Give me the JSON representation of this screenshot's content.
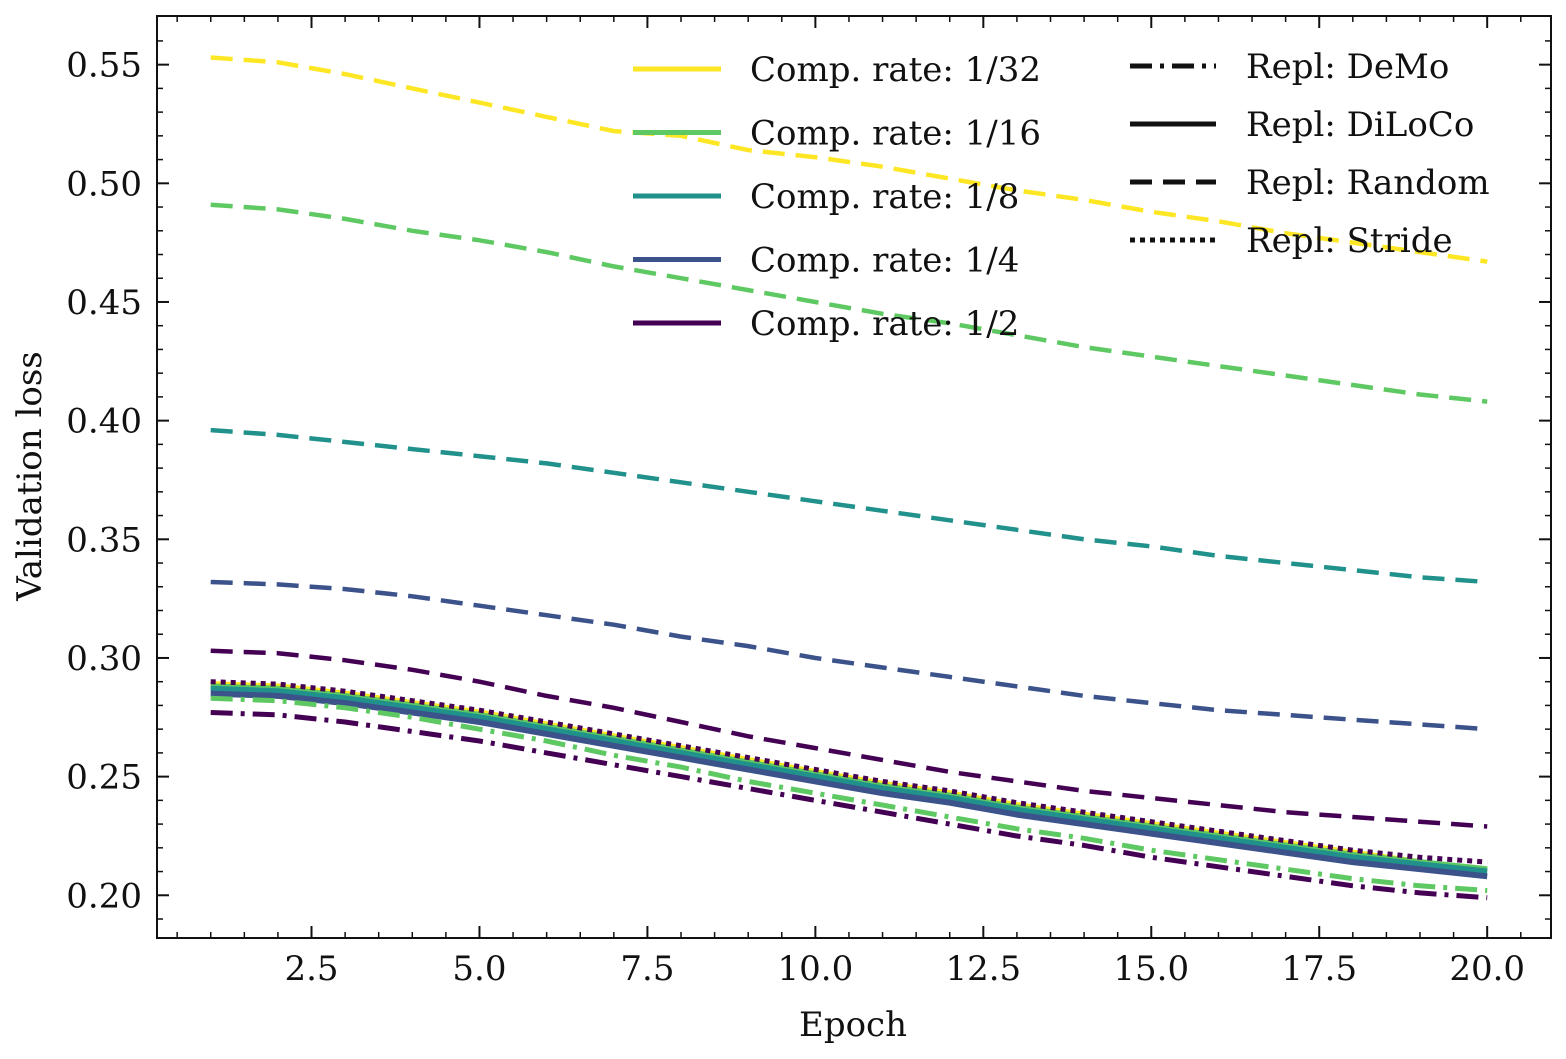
{
  "chart_data": {
    "type": "line",
    "title": "",
    "xlabel": "Epoch",
    "ylabel": "Validation loss",
    "xlim": [
      0.2,
      20.95
    ],
    "ylim": [
      0.182,
      0.5705
    ],
    "xticks": [
      2.5,
      5.0,
      7.5,
      10.0,
      12.5,
      15.0,
      17.5,
      20.0
    ],
    "xtick_labels": [
      "2.5",
      "5.0",
      "7.5",
      "10.0",
      "12.5",
      "15.0",
      "17.5",
      "20.0"
    ],
    "yticks": [
      0.2,
      0.25,
      0.3,
      0.35,
      0.4,
      0.45,
      0.5,
      0.55
    ],
    "ytick_labels": [
      "0.20",
      "0.25",
      "0.30",
      "0.35",
      "0.40",
      "0.45",
      "0.50",
      "0.55"
    ],
    "x": [
      1,
      2,
      3,
      4,
      5,
      6,
      7,
      8,
      9,
      10,
      11,
      12,
      13,
      14,
      15,
      16,
      17,
      18,
      19,
      20
    ],
    "rate_colors": {
      "1/32": "#fde725",
      "1/16": "#5ec962",
      "1/8": "#21918c",
      "1/4": "#3b528b",
      "1/2": "#440154"
    },
    "legend": {
      "rates": [
        {
          "label": "Comp. rate: 1/32",
          "color": "#fde725"
        },
        {
          "label": "Comp. rate: 1/16",
          "color": "#5ec962"
        },
        {
          "label": "Comp. rate: 1/8",
          "color": "#21918c"
        },
        {
          "label": "Comp. rate: 1/4",
          "color": "#3b528b"
        },
        {
          "label": "Comp. rate: 1/2",
          "color": "#440154"
        }
      ],
      "methods": [
        {
          "label": "Repl: DeMo",
          "style": "dashdot"
        },
        {
          "label": "Repl: DiLoCo",
          "style": "solid"
        },
        {
          "label": "Repl: Random",
          "style": "dashed"
        },
        {
          "label": "Repl: Stride",
          "style": "dotted"
        }
      ]
    },
    "series": [
      {
        "name": "Random 1/32",
        "method": "Random",
        "rate": "1/32",
        "values": [
          0.553,
          0.551,
          0.546,
          0.54,
          0.534,
          0.528,
          0.522,
          0.52,
          0.514,
          0.511,
          0.507,
          0.502,
          0.497,
          0.493,
          0.488,
          0.484,
          0.479,
          0.475,
          0.471,
          0.467
        ]
      },
      {
        "name": "Random 1/16",
        "method": "Random",
        "rate": "1/16",
        "values": [
          0.491,
          0.489,
          0.485,
          0.48,
          0.476,
          0.471,
          0.465,
          0.46,
          0.455,
          0.45,
          0.445,
          0.441,
          0.436,
          0.431,
          0.427,
          0.423,
          0.419,
          0.415,
          0.411,
          0.408
        ]
      },
      {
        "name": "Random 1/8",
        "method": "Random",
        "rate": "1/8",
        "values": [
          0.396,
          0.394,
          0.391,
          0.388,
          0.385,
          0.382,
          0.378,
          0.374,
          0.37,
          0.366,
          0.362,
          0.358,
          0.354,
          0.35,
          0.347,
          0.343,
          0.34,
          0.337,
          0.334,
          0.332
        ]
      },
      {
        "name": "Random 1/4",
        "method": "Random",
        "rate": "1/4",
        "values": [
          0.332,
          0.331,
          0.329,
          0.326,
          0.322,
          0.318,
          0.314,
          0.309,
          0.305,
          0.3,
          0.296,
          0.292,
          0.288,
          0.284,
          0.281,
          0.278,
          0.276,
          0.274,
          0.272,
          0.27
        ]
      },
      {
        "name": "Random 1/2",
        "method": "Random",
        "rate": "1/2",
        "values": [
          0.303,
          0.302,
          0.299,
          0.295,
          0.29,
          0.284,
          0.279,
          0.273,
          0.267,
          0.262,
          0.257,
          0.252,
          0.248,
          0.244,
          0.241,
          0.238,
          0.235,
          0.233,
          0.231,
          0.229
        ]
      },
      {
        "name": "DiLoCo 1/32",
        "method": "DiLoCo",
        "rate": "1/32",
        "values": [
          0.289,
          0.288,
          0.285,
          0.281,
          0.277,
          0.272,
          0.267,
          0.262,
          0.257,
          0.252,
          0.247,
          0.243,
          0.238,
          0.234,
          0.23,
          0.226,
          0.222,
          0.218,
          0.214,
          0.21
        ]
      },
      {
        "name": "DiLoCo 1/16",
        "method": "DiLoCo",
        "rate": "1/16",
        "values": [
          0.288,
          0.287,
          0.284,
          0.28,
          0.276,
          0.271,
          0.266,
          0.261,
          0.256,
          0.251,
          0.246,
          0.242,
          0.237,
          0.233,
          0.229,
          0.225,
          0.221,
          0.217,
          0.214,
          0.211
        ]
      },
      {
        "name": "DiLoCo 1/8",
        "method": "DiLoCo",
        "rate": "1/8",
        "values": [
          0.287,
          0.286,
          0.283,
          0.279,
          0.275,
          0.27,
          0.265,
          0.26,
          0.255,
          0.25,
          0.245,
          0.241,
          0.236,
          0.232,
          0.228,
          0.224,
          0.22,
          0.216,
          0.213,
          0.21
        ]
      },
      {
        "name": "DiLoCo 1/4",
        "method": "DiLoCo",
        "rate": "1/4",
        "values": [
          0.285,
          0.284,
          0.281,
          0.277,
          0.273,
          0.268,
          0.263,
          0.258,
          0.253,
          0.248,
          0.243,
          0.239,
          0.234,
          0.23,
          0.226,
          0.222,
          0.218,
          0.214,
          0.211,
          0.208
        ]
      },
      {
        "name": "Stride 1/2",
        "method": "Stride",
        "rate": "1/2",
        "values": [
          0.29,
          0.289,
          0.286,
          0.282,
          0.278,
          0.273,
          0.268,
          0.263,
          0.258,
          0.253,
          0.248,
          0.244,
          0.239,
          0.235,
          0.231,
          0.227,
          0.223,
          0.219,
          0.216,
          0.214
        ]
      },
      {
        "name": "DeMo 1/16",
        "method": "DeMo",
        "rate": "1/16",
        "values": [
          0.283,
          0.282,
          0.279,
          0.275,
          0.27,
          0.265,
          0.259,
          0.254,
          0.248,
          0.243,
          0.238,
          0.233,
          0.228,
          0.224,
          0.219,
          0.215,
          0.211,
          0.207,
          0.204,
          0.202
        ]
      },
      {
        "name": "DeMo 1/2",
        "method": "DeMo",
        "rate": "1/2",
        "values": [
          0.277,
          0.276,
          0.273,
          0.269,
          0.265,
          0.26,
          0.255,
          0.25,
          0.245,
          0.24,
          0.235,
          0.23,
          0.225,
          0.221,
          0.216,
          0.212,
          0.208,
          0.204,
          0.201,
          0.199
        ]
      }
    ]
  }
}
